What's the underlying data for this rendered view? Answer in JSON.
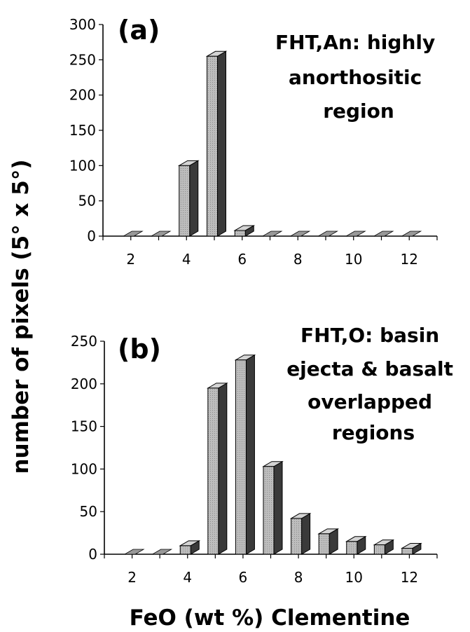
{
  "ylabel": "number of pixels (5° x 5°)",
  "xlabel": "FeO (wt %) Clementine",
  "chart_data": [
    {
      "type": "bar",
      "panel_label": "(a)",
      "annotation": [
        "FHT,An: highly",
        "anorthositic",
        "region"
      ],
      "x": [
        2,
        3,
        4,
        5,
        6,
        7,
        8,
        9,
        10,
        11,
        12
      ],
      "values": [
        0,
        0,
        100,
        255,
        8,
        0,
        0,
        0,
        0,
        0,
        0
      ],
      "xticks": [
        2,
        4,
        6,
        8,
        10,
        12
      ],
      "yticks": [
        0,
        50,
        100,
        150,
        200,
        250,
        300
      ],
      "ylim": [
        0,
        300
      ],
      "xlim": [
        1,
        13
      ]
    },
    {
      "type": "bar",
      "panel_label": "(b)",
      "annotation": [
        "FHT,O: basin",
        "ejecta & basalt",
        "overlapped",
        "regions"
      ],
      "x": [
        2,
        3,
        4,
        5,
        6,
        7,
        8,
        9,
        10,
        11,
        12
      ],
      "values": [
        0,
        0,
        10,
        195,
        228,
        103,
        42,
        24,
        15,
        11,
        7
      ],
      "xticks": [
        2,
        4,
        6,
        8,
        10,
        12
      ],
      "yticks": [
        0,
        50,
        100,
        150,
        200,
        250
      ],
      "ylim": [
        0,
        250
      ],
      "xlim": [
        1,
        13
      ]
    }
  ]
}
